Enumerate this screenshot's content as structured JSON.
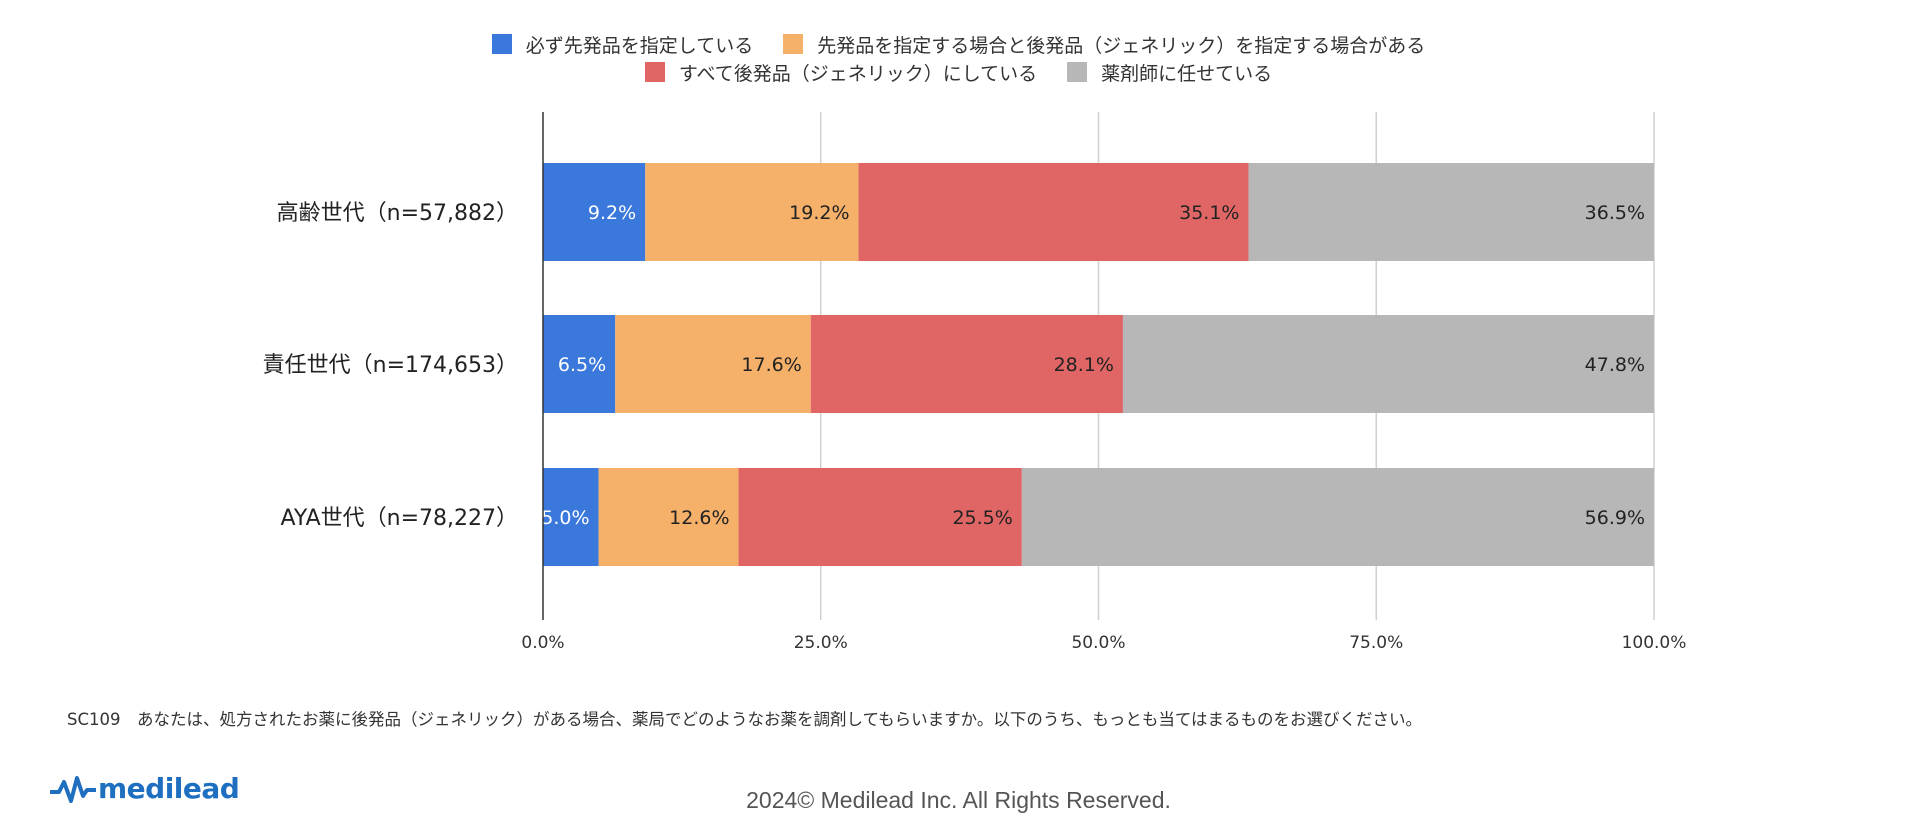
{
  "chart_data": {
    "type": "bar",
    "orientation": "horizontal",
    "stacked": "percent",
    "categories": [
      "高齢世代（n=57,882）",
      "責任世代（n=174,653）",
      "AYA世代（n=78,227）"
    ],
    "series": [
      {
        "name": "必ず先発品を指定している",
        "color": "#3b78dc",
        "label_color": "#ffffff",
        "values": [
          9.2,
          6.5,
          5.0
        ]
      },
      {
        "name": "先発品を指定する場合と後発品（ジェネリック）を指定する場合がある",
        "color": "#f5b06a",
        "label_color": "#222222",
        "values": [
          19.2,
          17.6,
          12.6
        ]
      },
      {
        "name": "すべて後発品（ジェネリック）にしている",
        "color": "#e06666",
        "label_color": "#222222",
        "values": [
          35.1,
          28.1,
          25.5
        ]
      },
      {
        "name": "薬剤師に任せている",
        "color": "#b7b7b7",
        "label_color": "#222222",
        "values": [
          36.5,
          47.8,
          56.9
        ]
      }
    ],
    "data_labels": [
      [
        "9.2%",
        "19.2%",
        "35.1%",
        "36.5%"
      ],
      [
        "6.5%",
        "17.6%",
        "28.1%",
        "47.8%"
      ],
      [
        "5.0%",
        "12.6%",
        "25.5%",
        "56.9%"
      ]
    ],
    "xlim": [
      0,
      100
    ],
    "xticks": [
      0,
      25,
      50,
      75,
      100
    ],
    "xtick_labels": [
      "0.0%",
      "25.0%",
      "50.0%",
      "75.0%",
      "100.0%"
    ],
    "grid": "vertical",
    "legend_position": "top-center",
    "title": "",
    "xlabel": "",
    "ylabel": ""
  },
  "caption": "SC109　あなたは、処方されたお薬に後発品（ジェネリック）がある場合、薬局でどのようなお薬を調剤してもらいますか。以下のうち、もっとも当てはまるものをお選びください。",
  "logo_text": "medilead",
  "copyright": "2024© Medilead Inc. All Rights Reserved."
}
